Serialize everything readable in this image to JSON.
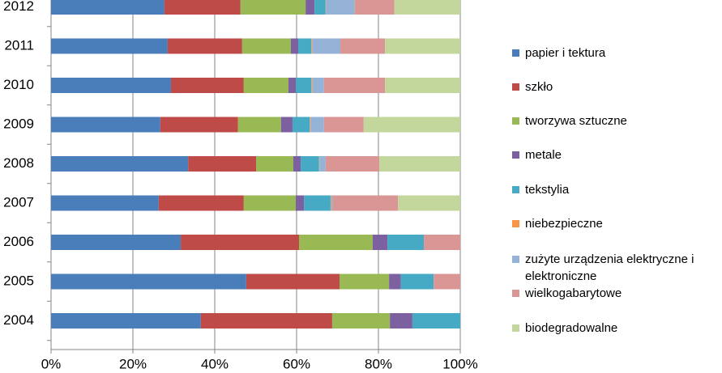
{
  "chart_data": {
    "type": "stacked-bar-horizontal",
    "categories": [
      "2012",
      "2011",
      "2010",
      "2009",
      "2008",
      "2007",
      "2006",
      "2005",
      "2004"
    ],
    "series": [
      {
        "name": "papier i tektura",
        "color": "#4a7ebb",
        "values": [
          27.7,
          28.5,
          29.3,
          26.7,
          33.5,
          26.3,
          31.7,
          47.7,
          36.6
        ]
      },
      {
        "name": "szkło",
        "color": "#be4b48",
        "values": [
          18.6,
          18.2,
          17.8,
          19.0,
          16.6,
          20.8,
          28.9,
          22.8,
          32.1
        ]
      },
      {
        "name": "tworzywa sztuczne",
        "color": "#98b954",
        "values": [
          15.9,
          11.9,
          10.9,
          10.5,
          9.1,
          12.7,
          18.0,
          12.1,
          14.1
        ]
      },
      {
        "name": "metale",
        "color": "#7d60a0",
        "values": [
          2.2,
          1.8,
          1.8,
          2.8,
          1.8,
          2.0,
          3.6,
          2.9,
          5.5
        ]
      },
      {
        "name": "tekstylia",
        "color": "#46aac5",
        "values": [
          2.7,
          3.2,
          3.8,
          4.2,
          4.5,
          6.5,
          8.9,
          8.0,
          11.7
        ]
      },
      {
        "name": "niebezpieczne",
        "color": "#f79646",
        "values": [
          0.1,
          0.2,
          0.2,
          0.2,
          0.1,
          0.2,
          0,
          0,
          0
        ]
      },
      {
        "name": "zużyte urządzenia elektryczne i elektroniczne",
        "color": "#95b3d7",
        "values": [
          7.0,
          6.9,
          2.9,
          3.3,
          1.5,
          0.4,
          0,
          0,
          0
        ]
      },
      {
        "name": "wielkogabarytowe",
        "color": "#d99694",
        "values": [
          9.7,
          10.9,
          14.9,
          9.7,
          13.1,
          15.9,
          8.9,
          6.5,
          0
        ]
      },
      {
        "name": "biodegradowalne",
        "color": "#c3d69b",
        "values": [
          16.1,
          18.4,
          18.4,
          23.6,
          19.8,
          15.2,
          0,
          0,
          0
        ]
      }
    ],
    "xlim": [
      0,
      100
    ],
    "xticks": [
      {
        "value": 0,
        "label": "0%"
      },
      {
        "value": 20,
        "label": "20%"
      },
      {
        "value": 40,
        "label": "40%"
      },
      {
        "value": 60,
        "label": "60%"
      },
      {
        "value": 80,
        "label": "80%"
      },
      {
        "value": 100,
        "label": "100%"
      }
    ],
    "grid": true,
    "legend": "right"
  }
}
